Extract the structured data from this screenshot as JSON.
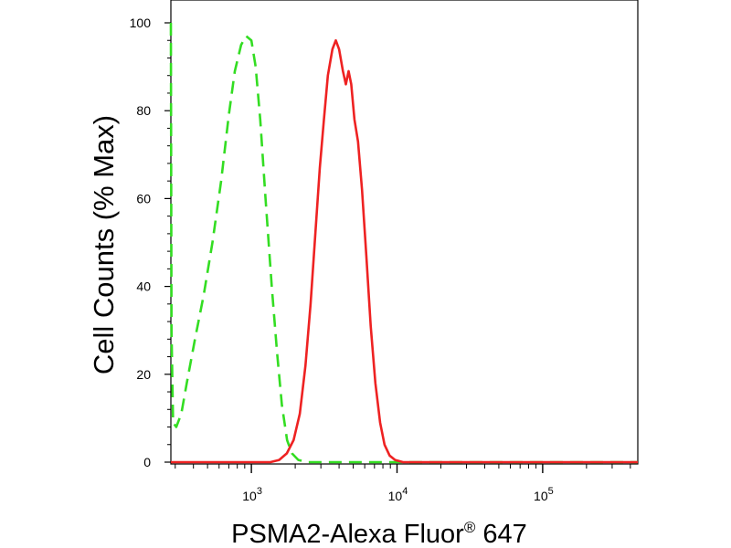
{
  "chart_data": {
    "type": "line",
    "xlabel": "PSMA2-Alexa Fluor",
    "xlabel_superscript": "®",
    "xlabel_suffix": " 647",
    "ylabel": "Cell Counts (% Max)",
    "x_scale": "log",
    "xlim": [
      280,
      450000
    ],
    "ylim": [
      0,
      100
    ],
    "grid": false,
    "legend": "none",
    "y_ticks": [
      {
        "value": 0,
        "label": "0"
      },
      {
        "value": 20,
        "label": "20"
      },
      {
        "value": 40,
        "label": "40"
      },
      {
        "value": 60,
        "label": "60"
      },
      {
        "value": 80,
        "label": "80"
      },
      {
        "value": 100,
        "label": "100"
      }
    ],
    "x_ticks": [
      {
        "value": 1000,
        "base": "10",
        "exp": "3"
      },
      {
        "value": 10000,
        "base": "10",
        "exp": "4"
      },
      {
        "value": 100000,
        "base": "10",
        "exp": "5"
      }
    ],
    "series": [
      {
        "color": "#33dd22",
        "dash": "dashed",
        "points": [
          [
            280,
            100
          ],
          [
            283,
            30
          ],
          [
            290,
            9
          ],
          [
            305,
            8
          ],
          [
            330,
            11
          ],
          [
            360,
            18
          ],
          [
            410,
            28
          ],
          [
            470,
            38
          ],
          [
            540,
            50
          ],
          [
            620,
            64
          ],
          [
            700,
            79
          ],
          [
            770,
            89
          ],
          [
            850,
            95
          ],
          [
            920,
            97
          ],
          [
            1000,
            96
          ],
          [
            1070,
            90
          ],
          [
            1150,
            78
          ],
          [
            1250,
            60
          ],
          [
            1380,
            40
          ],
          [
            1500,
            25
          ],
          [
            1620,
            13
          ],
          [
            1760,
            5
          ],
          [
            1900,
            2
          ],
          [
            2100,
            0.5
          ],
          [
            2400,
            0
          ],
          [
            450000,
            0
          ]
        ]
      },
      {
        "color": "#ee2222",
        "dash": "solid",
        "points": [
          [
            280,
            0
          ],
          [
            1350,
            0
          ],
          [
            1550,
            0.5
          ],
          [
            1750,
            2
          ],
          [
            1950,
            5
          ],
          [
            2150,
            11
          ],
          [
            2350,
            22
          ],
          [
            2550,
            36
          ],
          [
            2750,
            52
          ],
          [
            2950,
            67
          ],
          [
            3150,
            78
          ],
          [
            3350,
            88
          ],
          [
            3600,
            94
          ],
          [
            3800,
            96
          ],
          [
            4000,
            94
          ],
          [
            4250,
            89
          ],
          [
            4450,
            86
          ],
          [
            4650,
            89
          ],
          [
            4850,
            86
          ],
          [
            5100,
            78
          ],
          [
            5400,
            73
          ],
          [
            5750,
            62
          ],
          [
            6150,
            47
          ],
          [
            6600,
            31
          ],
          [
            7100,
            18
          ],
          [
            7650,
            9
          ],
          [
            8200,
            4
          ],
          [
            8900,
            1.5
          ],
          [
            9700,
            0.5
          ],
          [
            11000,
            0
          ],
          [
            450000,
            0
          ]
        ]
      }
    ]
  }
}
